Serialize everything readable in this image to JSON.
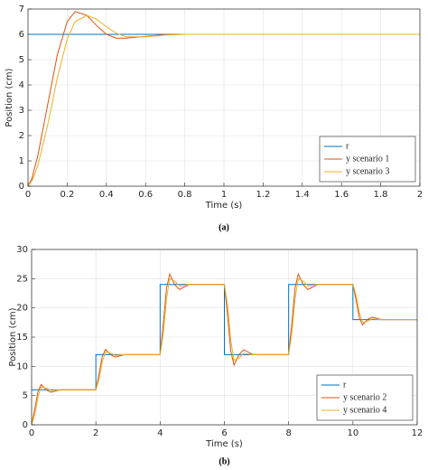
{
  "chart_data": [
    {
      "type": "line",
      "caption": "(a)",
      "xlabel": "Time (s)",
      "ylabel": "Position (cm)",
      "xlim": [
        0,
        2
      ],
      "ylim": [
        0,
        7
      ],
      "xticks": [
        0,
        0.2,
        0.4,
        0.6,
        0.8,
        1,
        1.2,
        1.4,
        1.6,
        1.8,
        2
      ],
      "yticks": [
        0,
        1,
        2,
        3,
        4,
        5,
        6,
        7
      ],
      "grid": true,
      "legend": "lower-right",
      "x": [
        0,
        0.02,
        0.05,
        0.1,
        0.15,
        0.2,
        0.24,
        0.3,
        0.35,
        0.4,
        0.45,
        0.5,
        0.6,
        0.7,
        0.8,
        1,
        1.2,
        1.4,
        1.6,
        1.8,
        2
      ],
      "series": [
        {
          "name": "r",
          "color": "#0072bd",
          "values": [
            6,
            6,
            6,
            6,
            6,
            6,
            6,
            6,
            6,
            6,
            6,
            6,
            6,
            6,
            6,
            6,
            6,
            6,
            6,
            6,
            6
          ]
        },
        {
          "name": "y scenario 1",
          "color": "#d95319",
          "values": [
            0,
            0.3,
            1.2,
            3.2,
            5.2,
            6.5,
            6.9,
            6.75,
            6.35,
            6.0,
            5.85,
            5.85,
            5.92,
            5.98,
            6.0,
            6.0,
            6.0,
            6.0,
            6.0,
            6.0,
            6.0
          ]
        },
        {
          "name": "y scenario 3",
          "color": "#edb120",
          "values": [
            0,
            0.2,
            0.8,
            2.4,
            4.3,
            5.8,
            6.5,
            6.75,
            6.6,
            6.3,
            6.05,
            5.9,
            5.9,
            5.97,
            6.0,
            6.0,
            6.0,
            6.0,
            6.0,
            6.0,
            6.0
          ]
        }
      ]
    },
    {
      "type": "line",
      "caption": "(b)",
      "xlabel": "Time (s)",
      "ylabel": "Position (cm)",
      "xlim": [
        0,
        12
      ],
      "ylim": [
        0,
        30
      ],
      "xticks": [
        0,
        2,
        4,
        6,
        8,
        10,
        12
      ],
      "yticks": [
        0,
        5,
        10,
        15,
        20,
        25,
        30
      ],
      "grid": true,
      "legend": "lower-right",
      "series": [
        {
          "name": "r",
          "color": "#0072bd",
          "x": [
            0,
            2,
            2,
            4,
            4,
            6,
            6,
            8,
            8,
            10,
            10,
            12
          ],
          "values": [
            6,
            6,
            12,
            12,
            24,
            24,
            12,
            12,
            24,
            24,
            18,
            18
          ]
        },
        {
          "name": "y scenario 2",
          "color": "#d95319",
          "x": [
            0,
            0.1,
            0.2,
            0.3,
            0.45,
            0.6,
            0.9,
            2,
            2.1,
            2.2,
            2.3,
            2.45,
            2.6,
            2.9,
            4,
            4.1,
            4.2,
            4.3,
            4.45,
            4.6,
            4.9,
            6,
            6.1,
            6.2,
            6.3,
            6.45,
            6.6,
            6.9,
            8,
            8.1,
            8.2,
            8.3,
            8.45,
            8.6,
            8.9,
            10,
            10.1,
            10.2,
            10.3,
            10.45,
            10.6,
            10.9,
            12
          ],
          "values": [
            0,
            2.7,
            5.7,
            6.9,
            6,
            5.58,
            6,
            6,
            8.7,
            11.7,
            12.9,
            12,
            11.58,
            12,
            12,
            17.4,
            23.4,
            25.8,
            24,
            23.16,
            24,
            24,
            18.6,
            12.6,
            10.2,
            12,
            12.84,
            12,
            12,
            17.4,
            23.4,
            25.8,
            24,
            23.16,
            24,
            24,
            21.3,
            18.3,
            17.1,
            18,
            18.42,
            18,
            18
          ]
        },
        {
          "name": "y scenario 4",
          "color": "#edb120",
          "x": [
            0,
            0.1,
            0.2,
            0.3,
            0.45,
            0.6,
            0.9,
            2,
            2.1,
            2.2,
            2.3,
            2.45,
            2.6,
            2.9,
            4,
            4.1,
            4.2,
            4.3,
            4.45,
            4.6,
            4.9,
            6,
            6.1,
            6.2,
            6.3,
            6.45,
            6.6,
            6.9,
            8,
            8.1,
            8.2,
            8.3,
            8.45,
            8.6,
            8.9,
            10,
            10.1,
            10.2,
            10.3,
            10.45,
            10.6,
            10.9,
            12
          ],
          "values": [
            0,
            1.8,
            4.8,
            6.48,
            6.3,
            5.88,
            6,
            6,
            7.8,
            10.8,
            12.48,
            12.3,
            11.88,
            12,
            12,
            15.6,
            21.6,
            24.96,
            24.6,
            23.76,
            24,
            24,
            20.4,
            14.4,
            11.04,
            11.4,
            12.24,
            12,
            12,
            15.6,
            21.6,
            24.96,
            24.6,
            23.76,
            24,
            24,
            22.2,
            19.2,
            17.52,
            17.7,
            18.12,
            18,
            18
          ]
        }
      ]
    }
  ]
}
